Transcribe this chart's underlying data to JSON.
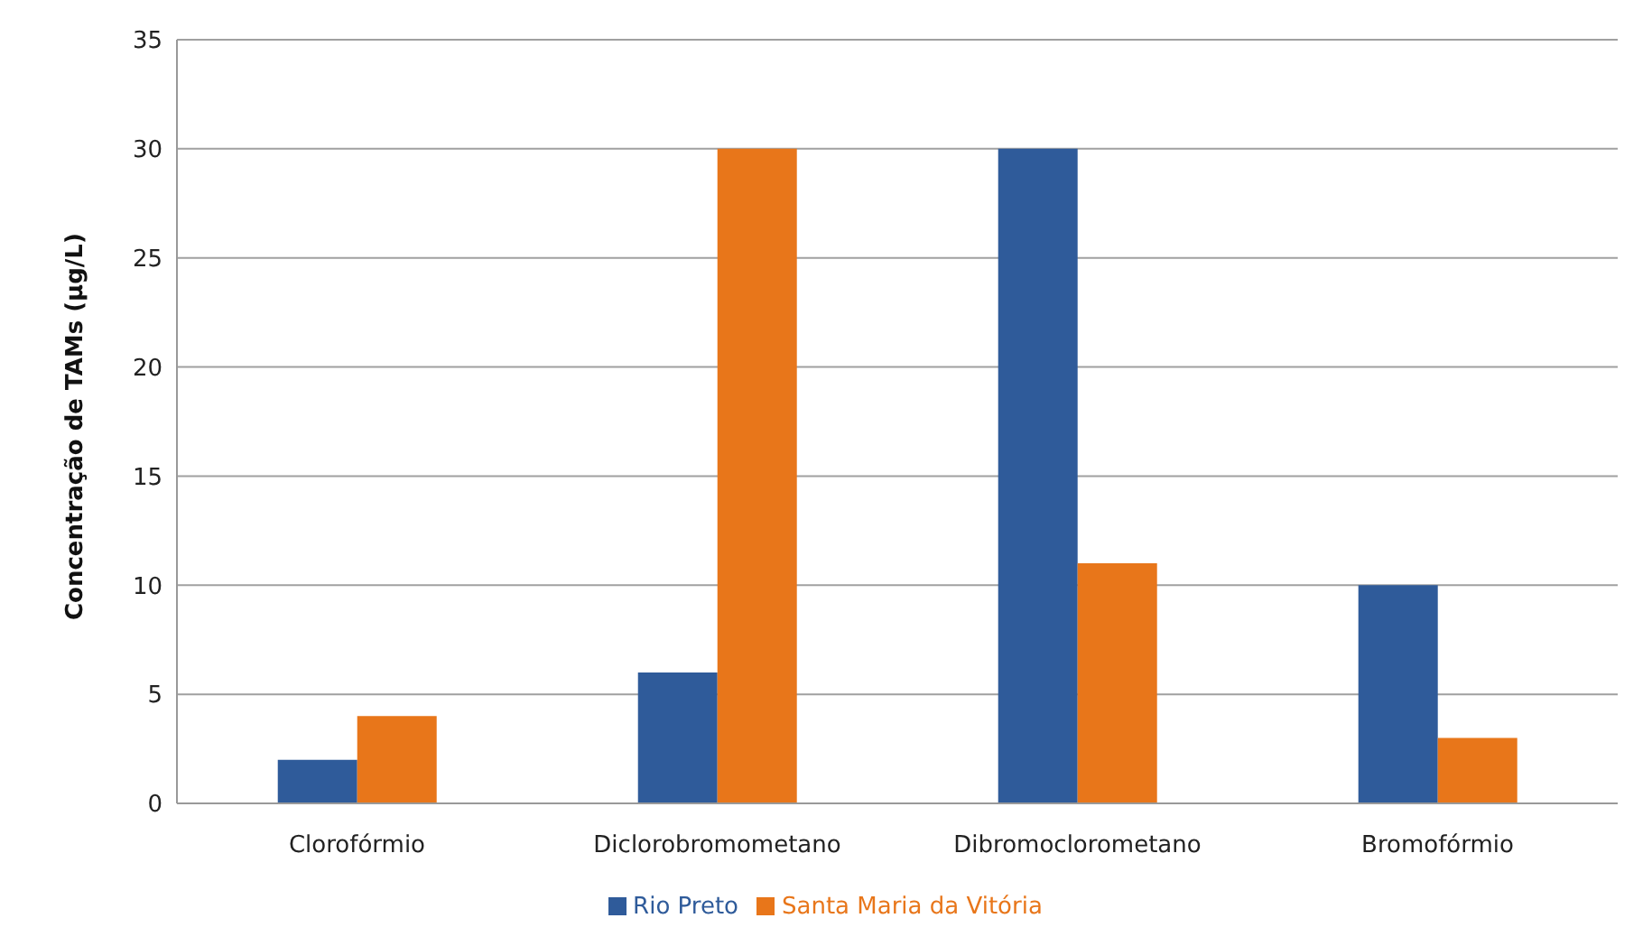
{
  "chart_data": {
    "type": "bar",
    "ylabel": "Concentração de TAMs  (µg/L)",
    "categories": [
      "Clorofórmio",
      "Diclorobromometano",
      "Dibromoclorometano",
      "Bromofórmio"
    ],
    "series": [
      {
        "name": "Rio Preto",
        "color": "#2f5b9a",
        "values": [
          2,
          6,
          30,
          10
        ]
      },
      {
        "name": "Santa Maria da Vitória",
        "color": "#e8761a",
        "values": [
          4,
          30,
          11,
          3
        ]
      }
    ],
    "ylim": [
      0,
      35
    ],
    "yticks": [
      0,
      5,
      10,
      15,
      20,
      25,
      30,
      35
    ],
    "grid": "y",
    "legend": "bottom"
  }
}
